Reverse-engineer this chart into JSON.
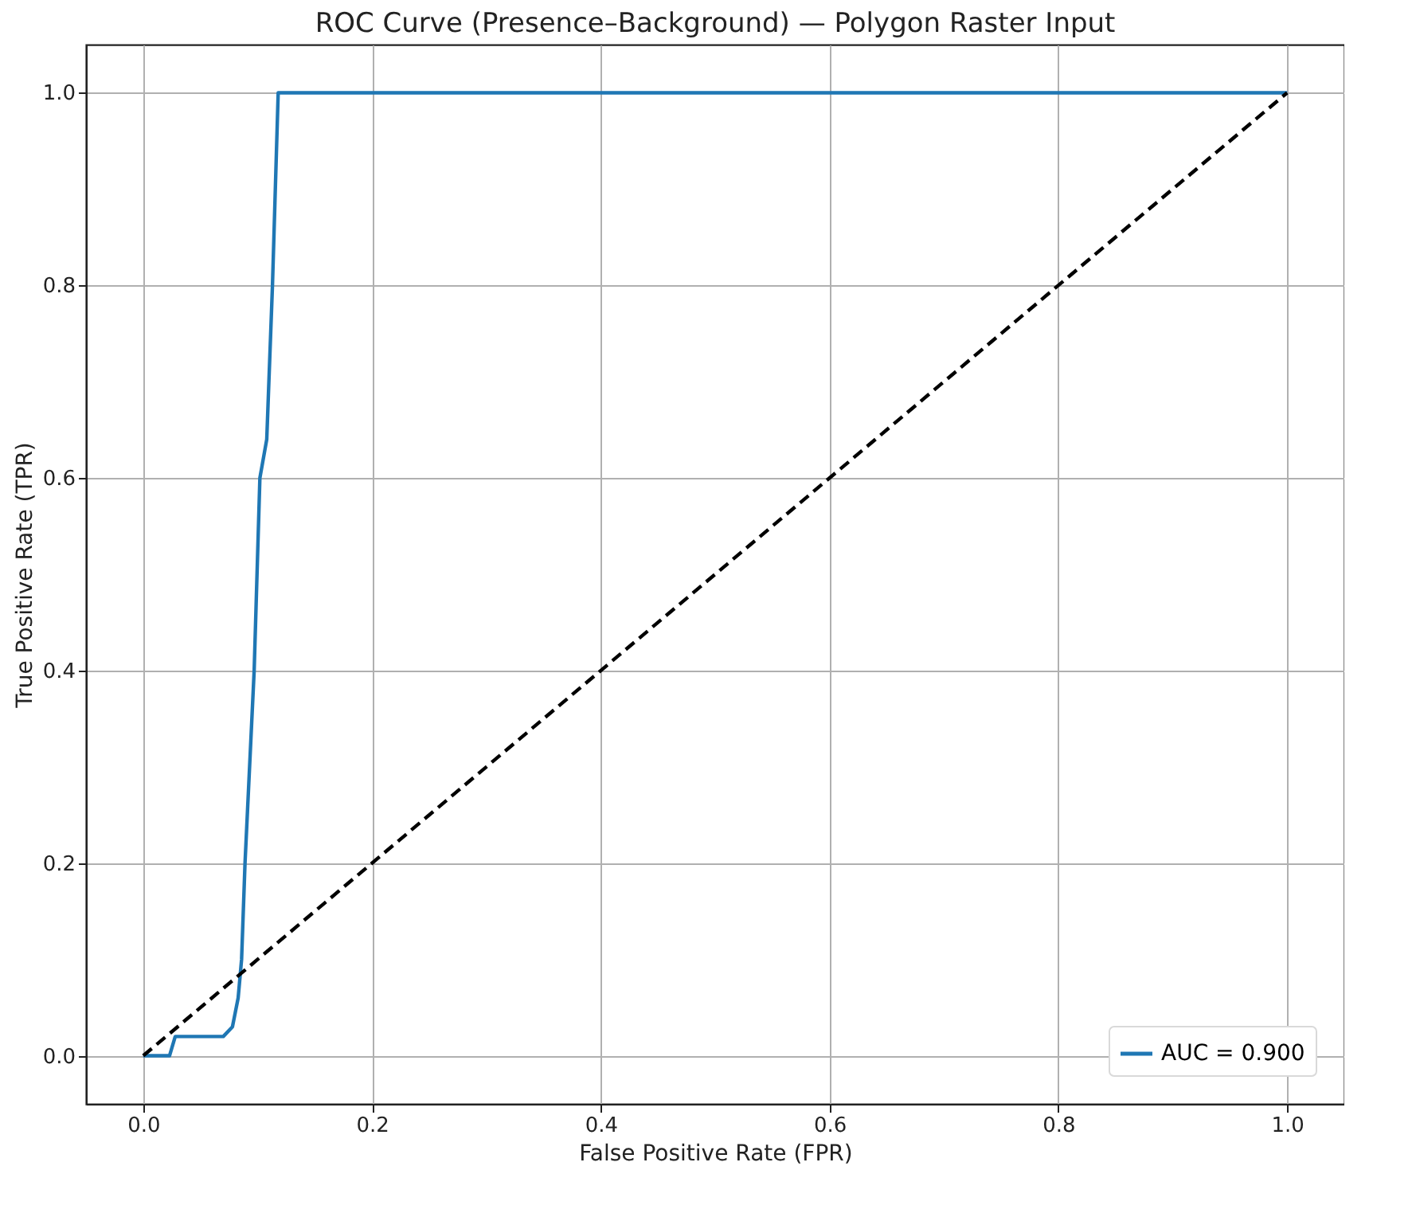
{
  "chart_data": {
    "type": "line",
    "title": "ROC Curve (Presence–Background) — Polygon Raster Input",
    "xlabel": "False Positive Rate (FPR)",
    "ylabel": "True Positive Rate (TPR)",
    "series": [
      {
        "name": "AUC = 0.900",
        "color": "#1f77b4",
        "line_style": "solid",
        "x": [
          0,
          0.023,
          0.028,
          0.07,
          0.078,
          0.083,
          0.086,
          0.089,
          0.097,
          0.102,
          0.108,
          0.113,
          0.118,
          1
        ],
        "values": [
          0,
          0,
          0.02,
          0.02,
          0.03,
          0.06,
          0.1,
          0.2,
          0.4,
          0.6,
          0.64,
          0.8,
          1,
          1
        ]
      },
      {
        "color": "#000000",
        "line_style": "dashed",
        "x": [
          0,
          1
        ],
        "values": [
          0,
          1
        ]
      }
    ],
    "xlim": [
      -0.05,
      1.05
    ],
    "ylim": [
      -0.05,
      1.05
    ],
    "xticks": [
      {
        "value": 0,
        "label": "0.0"
      },
      0.2,
      0.4,
      0.6,
      0.8,
      {
        "value": 1,
        "label": "1.0"
      }
    ],
    "yticks": [
      {
        "value": 0,
        "label": "0.0"
      },
      0.2,
      0.4,
      0.6,
      0.8,
      {
        "value": 1,
        "label": "1.0"
      }
    ],
    "grid": true,
    "legend": "bottom right",
    "marker": "none"
  }
}
